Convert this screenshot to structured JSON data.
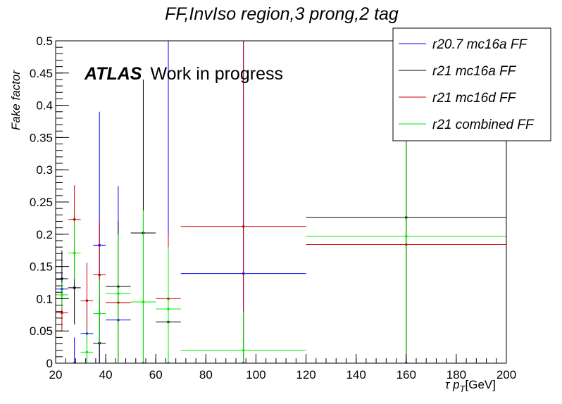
{
  "chart_data": {
    "type": "scatter",
    "title": "FF,InvIso region,3 prong,2 tag",
    "xlabel_main": "τ p",
    "xlabel_sub": "T",
    "xlabel_unit": "[GeV]",
    "ylabel": "Fake factor",
    "xlim": [
      20,
      200
    ],
    "ylim": [
      0,
      0.5
    ],
    "xticks": [
      20,
      40,
      60,
      80,
      100,
      120,
      140,
      160,
      180,
      200
    ],
    "xtick_labels": [
      "20",
      "40",
      "60",
      "80",
      "100",
      "120",
      "140",
      "160",
      "180",
      "200"
    ],
    "yticks": [
      0,
      0.05,
      0.1,
      0.15,
      0.2,
      0.25,
      0.3,
      0.35,
      0.4,
      0.45,
      0.5
    ],
    "ytick_labels": [
      "0",
      "0.05",
      "0.1",
      "0.15",
      "0.2",
      "0.25",
      "0.3",
      "0.35",
      "0.4",
      "0.45",
      "0.5"
    ],
    "grid": false,
    "legend_position": "top-right",
    "annotation": {
      "bold": "ATLAS",
      "text": "Work in progress"
    },
    "series": [
      {
        "name": "r20.7 mc16a FF",
        "color": "#0000ff",
        "points": [
          {
            "x": 22.5,
            "xerr": 2.5,
            "y": 0.115,
            "ylo": 0.09,
            "yhi": 0.14
          },
          {
            "x": 27.5,
            "xerr": 2.5,
            "y": 0.0,
            "ylo": 0.0,
            "yhi": 0.04
          },
          {
            "x": 32.5,
            "xerr": 2.5,
            "y": 0.046,
            "ylo": 0.0,
            "yhi": 0.1
          },
          {
            "x": 37.5,
            "xerr": 2.5,
            "y": 0.183,
            "ylo": 0.0,
            "yhi": 0.39
          },
          {
            "x": 45,
            "xerr": 5,
            "y": 0.067,
            "ylo": 0.0,
            "yhi": 0.275
          },
          {
            "x": 55,
            "xerr": 5,
            "y": 0.0,
            "ylo": 0.0,
            "yhi": 0.0
          },
          {
            "x": 65,
            "xerr": 5,
            "y": 0.0,
            "ylo": 0.0,
            "yhi": 0.5
          },
          {
            "x": 95,
            "xerr": 25,
            "y": 0.139,
            "ylo": 0.0,
            "yhi": 0.5
          },
          {
            "x": 160,
            "xerr": 40,
            "y": 0.0,
            "ylo": 0.0,
            "yhi": 0.36
          }
        ]
      },
      {
        "name": "r21 mc16a FF",
        "color": "#000000",
        "points": [
          {
            "x": 22.5,
            "xerr": 2.5,
            "y": 0.131,
            "ylo": 0.1,
            "yhi": 0.175
          },
          {
            "x": 27.5,
            "xerr": 2.5,
            "y": 0.117,
            "ylo": 0.06,
            "yhi": 0.175
          },
          {
            "x": 37.5,
            "xerr": 2.5,
            "y": 0.031,
            "ylo": 0.0,
            "yhi": 0.1
          },
          {
            "x": 45,
            "xerr": 5,
            "y": 0.119,
            "ylo": 0.0,
            "yhi": 0.22
          },
          {
            "x": 55,
            "xerr": 5,
            "y": 0.202,
            "ylo": 0.0,
            "yhi": 0.44
          },
          {
            "x": 65,
            "xerr": 5,
            "y": 0.064,
            "ylo": 0.0,
            "yhi": 0.18
          },
          {
            "x": 95,
            "xerr": 25,
            "y": 0.0,
            "ylo": 0.0,
            "yhi": 0.0
          },
          {
            "x": 160,
            "xerr": 40,
            "y": 0.226,
            "ylo": 0.0,
            "yhi": 0.5
          }
        ]
      },
      {
        "name": "r21 mc16d FF",
        "color": "#cc0000",
        "points": [
          {
            "x": 22.5,
            "xerr": 2.5,
            "y": 0.078,
            "ylo": 0.05,
            "yhi": 0.11
          },
          {
            "x": 27.5,
            "xerr": 2.5,
            "y": 0.223,
            "ylo": 0.165,
            "yhi": 0.276
          },
          {
            "x": 32.5,
            "xerr": 2.5,
            "y": 0.097,
            "ylo": 0.03,
            "yhi": 0.156
          },
          {
            "x": 37.5,
            "xerr": 2.5,
            "y": 0.137,
            "ylo": 0.05,
            "yhi": 0.22
          },
          {
            "x": 45,
            "xerr": 5,
            "y": 0.094,
            "ylo": 0.0,
            "yhi": 0.19
          },
          {
            "x": 65,
            "xerr": 5,
            "y": 0.1,
            "ylo": 0.0,
            "yhi": 0.2
          },
          {
            "x": 95,
            "xerr": 25,
            "y": 0.212,
            "ylo": 0.0,
            "yhi": 0.5
          },
          {
            "x": 160,
            "xerr": 40,
            "y": 0.184,
            "ylo": 0.0,
            "yhi": 0.5
          }
        ]
      },
      {
        "name": "r21 combined FF",
        "color": "#00ee00",
        "points": [
          {
            "x": 22.5,
            "xerr": 2.5,
            "y": 0.106,
            "ylo": 0.085,
            "yhi": 0.125
          },
          {
            "x": 27.5,
            "xerr": 2.5,
            "y": 0.171,
            "ylo": 0.13,
            "yhi": 0.22
          },
          {
            "x": 32.5,
            "xerr": 2.5,
            "y": 0.017,
            "ylo": 0.0,
            "yhi": 0.05
          },
          {
            "x": 37.5,
            "xerr": 2.5,
            "y": 0.077,
            "ylo": 0.03,
            "yhi": 0.13
          },
          {
            "x": 45,
            "xerr": 5,
            "y": 0.108,
            "ylo": 0.0,
            "yhi": 0.2
          },
          {
            "x": 55,
            "xerr": 5,
            "y": 0.095,
            "ylo": 0.0,
            "yhi": 0.237
          },
          {
            "x": 65,
            "xerr": 5,
            "y": 0.084,
            "ylo": 0.0,
            "yhi": 0.18
          },
          {
            "x": 95,
            "xerr": 25,
            "y": 0.02,
            "ylo": 0.0,
            "yhi": 0.08
          },
          {
            "x": 160,
            "xerr": 40,
            "y": 0.197,
            "ylo": 0.0,
            "yhi": 0.5
          }
        ]
      }
    ]
  }
}
